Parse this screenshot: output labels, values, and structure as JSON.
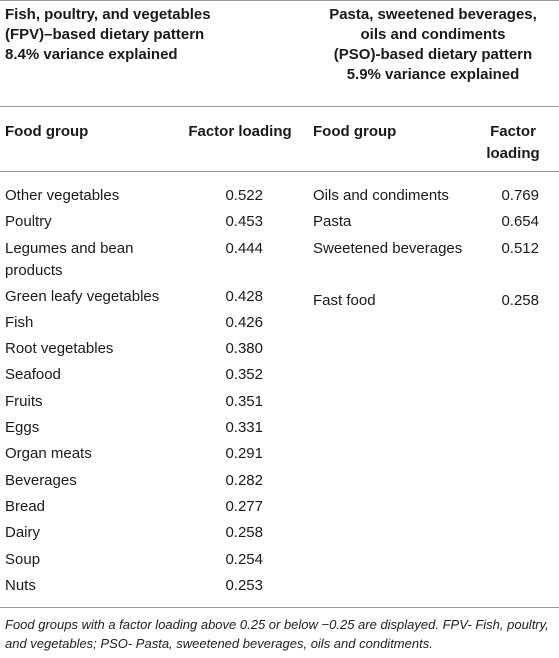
{
  "patterns": {
    "left": {
      "title_lines": [
        "Fish, poultry, and vegetables",
        "(FPV)–based dietary pattern",
        "8.4% variance explained"
      ]
    },
    "right": {
      "title_lines": [
        "Pasta, sweetened beverages,",
        "oils and condiments",
        "(PSO)-based dietary pattern",
        "5.9% variance explained"
      ]
    }
  },
  "columns": {
    "food_group_left": "Food group",
    "factor_loading_left": "Factor loading",
    "food_group_right": "Food group",
    "factor_loading_right_lines": [
      "Factor",
      "loading"
    ]
  },
  "fpv_rows": [
    {
      "lines": [
        "Other vegetables"
      ],
      "value": "0.522"
    },
    {
      "lines": [
        "Poultry"
      ],
      "value": "0.453"
    },
    {
      "lines": [
        "Legumes and bean",
        "products"
      ],
      "value": "0.444"
    },
    {
      "lines": [
        "Green leafy vegetables"
      ],
      "value": "0.428"
    },
    {
      "lines": [
        "Fish"
      ],
      "value": "0.426"
    },
    {
      "lines": [
        "Root vegetables"
      ],
      "value": "0.380"
    },
    {
      "lines": [
        "Seafood"
      ],
      "value": "0.352"
    },
    {
      "lines": [
        "Fruits"
      ],
      "value": "0.351"
    },
    {
      "lines": [
        "Eggs"
      ],
      "value": "0.331"
    },
    {
      "lines": [
        "Organ meats"
      ],
      "value": "0.291"
    },
    {
      "lines": [
        "Beverages"
      ],
      "value": "0.282"
    },
    {
      "lines": [
        "Bread"
      ],
      "value": "0.277"
    },
    {
      "lines": [
        "Dairy"
      ],
      "value": "0.258"
    },
    {
      "lines": [
        "Soup"
      ],
      "value": "0.254"
    },
    {
      "lines": [
        "Nuts"
      ],
      "value": "0.253"
    }
  ],
  "pso_rows": [
    {
      "lines": [
        "Oils and condiments"
      ],
      "value": "0.769"
    },
    {
      "lines": [
        "Pasta"
      ],
      "value": "0.654"
    },
    {
      "lines": [
        "Sweetened beverages"
      ],
      "value": "0.512"
    },
    {
      "lines": [
        ""
      ],
      "value": ""
    },
    {
      "lines": [
        "Fast food"
      ],
      "value": "0.258"
    }
  ],
  "footnote": "Food groups with a factor loading above 0.25 or below −0.25 are displayed. FPV- Fish, poultry, and vegetables; PSO- Pasta, sweetened beverages, oils and conditments."
}
